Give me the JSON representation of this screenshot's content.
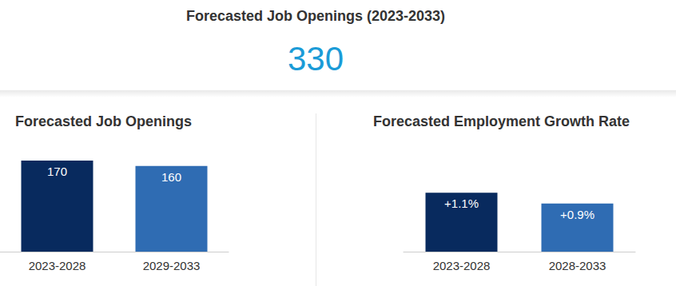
{
  "header": {
    "title": "Forecasted Job Openings (2023-2033)",
    "value": 330
  },
  "chart_data": [
    {
      "type": "bar",
      "title": "Forecasted Job Openings",
      "categories": [
        "2023-2028",
        "2029-2033"
      ],
      "values": [
        170,
        160
      ],
      "colors": [
        "#082a5e",
        "#2f6cb3"
      ],
      "ylim": [
        0,
        200
      ],
      "data_labels": true,
      "tick_labels": "x",
      "grid": false
    },
    {
      "type": "bar",
      "title": "Forecasted Employment Growth Rate",
      "categories": [
        "2023-2028",
        "2028-2033"
      ],
      "values": [
        1.1,
        0.9
      ],
      "value_labels": [
        "+1.1%",
        "+0.9%"
      ],
      "colors": [
        "#082a5e",
        "#2f6cb3"
      ],
      "ylim": [
        0,
        2
      ],
      "data_labels": true,
      "tick_labels": "x",
      "grid": false
    }
  ]
}
